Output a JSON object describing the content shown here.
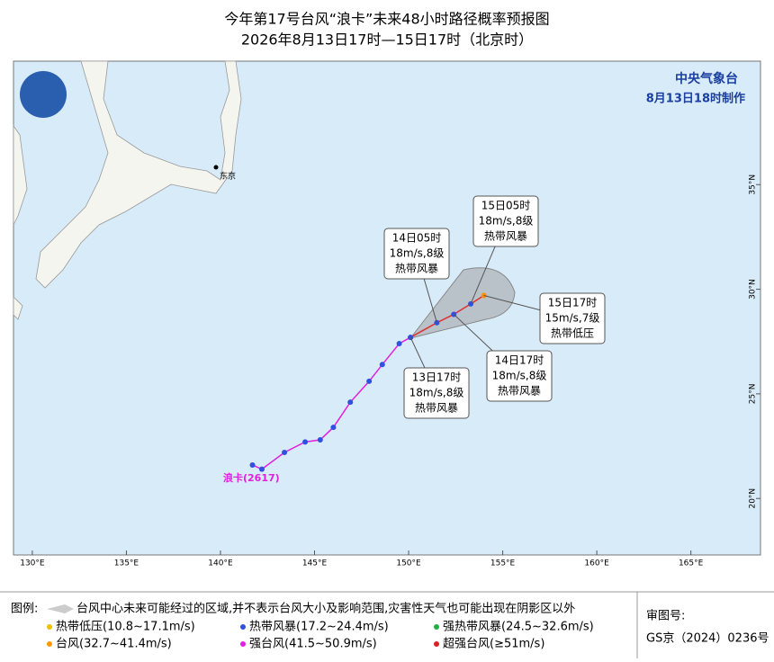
{
  "header": {
    "title": "今年第17号台风“浪卡”未来48小时路径概率预报图",
    "subtitle": "2026年8月13日17时—15日17时（北京时）"
  },
  "agency": {
    "name": "中央气象台",
    "made": "8月13日18时制作"
  },
  "map": {
    "xlim": [
      129,
      168.7
    ],
    "ylim": [
      17.3,
      40.9
    ],
    "xticks": [
      {
        "value": 130,
        "label": "130°E"
      },
      {
        "value": 135,
        "label": "135°E"
      },
      {
        "value": 140,
        "label": "140°E"
      },
      {
        "value": 145,
        "label": "145°E"
      },
      {
        "value": 150,
        "label": "150°E"
      },
      {
        "value": 155,
        "label": "155°E"
      },
      {
        "value": 160,
        "label": "160°E"
      },
      {
        "value": 165,
        "label": "165°E"
      }
    ],
    "yticks": [
      {
        "value": 20,
        "label": "20°N"
      },
      {
        "value": 25,
        "label": "25°N"
      },
      {
        "value": 30,
        "label": "30°N"
      },
      {
        "value": 35,
        "label": "35°N"
      }
    ],
    "city": "东京",
    "typhoon_name": "浪卡(2617)",
    "track": {
      "lon": [
        141.7,
        142.2,
        143.4,
        144.5,
        145.3,
        146.0,
        146.9,
        147.9,
        148.6,
        149.5,
        150.1
      ],
      "lat": [
        21.6,
        21.4,
        22.2,
        22.7,
        22.8,
        23.4,
        24.6,
        25.6,
        26.4,
        27.4,
        27.7
      ],
      "color": "#e020e0"
    },
    "forecast": {
      "lon": [
        150.1,
        151.5,
        152.4,
        153.3,
        154.0
      ],
      "lat": [
        27.7,
        28.4,
        28.8,
        29.3,
        29.7
      ],
      "color": "#ff8c00"
    },
    "callouts": [
      [
        "13日17时",
        "18m/s,8级",
        "热带风暴"
      ],
      [
        "14日05时",
        "18m/s,8级",
        "热带风暴"
      ],
      [
        "14日17时",
        "18m/s,8级",
        "热带风暴"
      ],
      [
        "15日05时",
        "18m/s,8级",
        "热带风暴"
      ],
      [
        "15日17时",
        "15m/s,7级",
        "热带低压"
      ]
    ]
  },
  "legend": {
    "label": "图例:",
    "cone": "台风中心未来可能经过的区域,并不表示台风大小及影响范围,灾害性天气也可能出现在阴影区以外",
    "items": [
      {
        "text": "热带低压(10.8~17.1m/s)",
        "color": "#f0c000"
      },
      {
        "text": "热带风暴(17.2~24.4m/s)",
        "color": "#3050e0"
      },
      {
        "text": "强热带风暴(24.5~32.6m/s)",
        "color": "#20b040"
      },
      {
        "text": "台风(32.7~41.4m/s)",
        "color": "#ff9900"
      },
      {
        "text": "强台风(41.5~50.9m/s)",
        "color": "#e020e0"
      },
      {
        "text": "超强台风(≥51m/s)",
        "color": "#e02020"
      }
    ]
  },
  "approval": {
    "label": "审图号:",
    "number": "GS京（2024）0236号"
  }
}
